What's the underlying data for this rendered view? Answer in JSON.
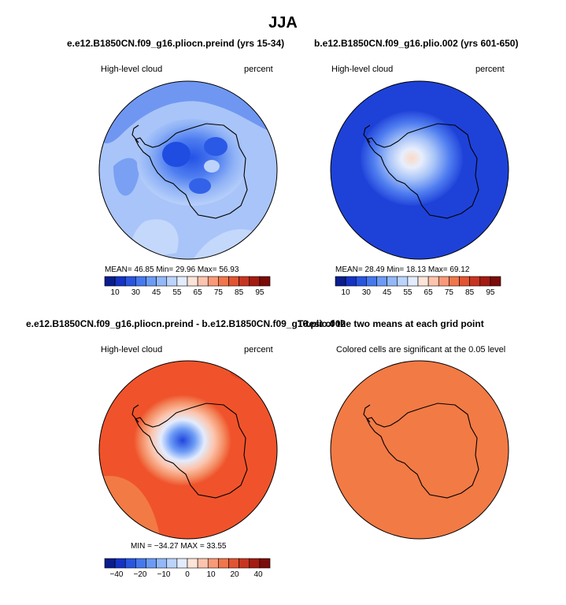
{
  "title": "JJA",
  "panels": [
    {
      "title": "e.e12.B1850CN.f09_g16.pliocn.preind (yrs 15-34)",
      "left_label": "High-level cloud",
      "right_label": "percent",
      "stats": "MEAN=   46.85   Min=   29.96   Max=   56.93",
      "colorbar": "bar1"
    },
    {
      "title": "b.e12.B1850CN.f09_g16.plio.002 (yrs 601-650)",
      "left_label": "High-level cloud",
      "right_label": "percent",
      "stats": "MEAN=   28.49   Min=   18.13   Max=   69.12",
      "colorbar": "bar1"
    },
    {
      "title": "e.e12.B1850CN.f09_g16.pliocn.preind - b.e12.B1850CN.f09_g16.plio.002",
      "left_label": "High-level cloud",
      "right_label": "percent",
      "stats": "MIN = −34.27  MAX = 33.55",
      "colorbar": "bar2"
    },
    {
      "title": "T-test of the two means at each grid point",
      "left_label": "Colored cells are significant at the 0.05 level"
    }
  ],
  "colorbars": {
    "bar1": {
      "colors": [
        "#0a1d8c",
        "#1533c4",
        "#2a55e0",
        "#4679ee",
        "#6c9bf5",
        "#93b8f8",
        "#bcd3fb",
        "#e3ecfd",
        "#fde4d8",
        "#fcc4ad",
        "#f89a78",
        "#f0764c",
        "#e25432",
        "#c73521",
        "#a31b12",
        "#7a0c0a"
      ],
      "labels": [
        "10",
        "30",
        "45",
        "55",
        "65",
        "75",
        "85",
        "95"
      ]
    },
    "bar2": {
      "colors": [
        "#0a1d8c",
        "#1533c4",
        "#2a55e0",
        "#4679ee",
        "#6c9bf5",
        "#93b8f8",
        "#bcd3fb",
        "#e3ecfd",
        "#fde4d8",
        "#fcc4ad",
        "#f89a78",
        "#f0764c",
        "#e25432",
        "#c73521",
        "#a31b12",
        "#7a0c0a"
      ],
      "labels": [
        "−40",
        "−20",
        "−10",
        "0",
        "10",
        "20",
        "40"
      ]
    }
  },
  "maps": {
    "map1_base": "#a9c4f8",
    "map2_base": "#1e42d8",
    "map3_base": "#f0532b",
    "map4_base": "#f27a45",
    "coast": "#000000"
  }
}
